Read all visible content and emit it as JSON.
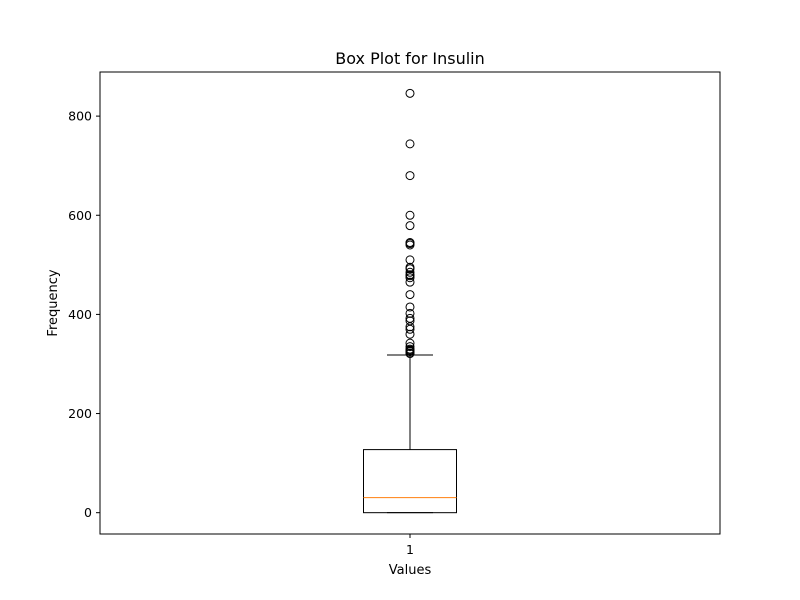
{
  "chart_data": {
    "type": "box",
    "title": "Box Plot for Insulin",
    "xlabel": "Values",
    "ylabel": "Frequency",
    "categories": [
      "1"
    ],
    "ylim": [
      -43,
      889
    ],
    "yticks": [
      0,
      200,
      400,
      600,
      800
    ],
    "box": {
      "whisker_low": 0,
      "q1": 0,
      "median": 30.5,
      "q3": 127.25,
      "whisker_high": 318
    },
    "outliers": [
      846,
      744,
      680,
      600,
      579,
      545,
      543,
      540,
      510,
      495,
      492,
      485,
      480,
      478,
      474,
      465,
      440,
      415,
      402,
      392,
      387,
      375,
      370,
      360,
      342,
      335,
      330,
      328,
      326,
      325,
      322,
      321
    ],
    "grid": false,
    "colors": {
      "box": "#000000",
      "median": "#ff7f0e",
      "outlier_edge": "#000000"
    }
  }
}
